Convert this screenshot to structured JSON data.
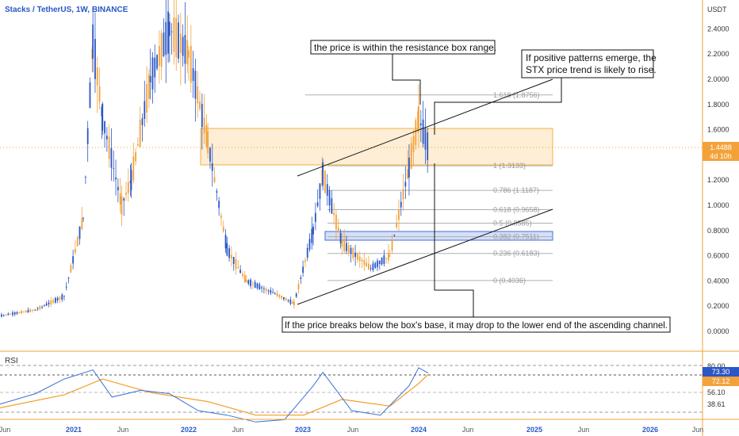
{
  "header": {
    "symbol_title": "Stacks / TetherUS, 1W, BINANCE"
  },
  "price_axis": {
    "unit": "USDT",
    "ticks": [
      "2.4000",
      "2.2000",
      "2.0000",
      "1.8000",
      "1.6000",
      "1.4000",
      "1.2000",
      "1.0000",
      "0.8000",
      "0.6000",
      "0.4000",
      "0.2000",
      "0.0000"
    ],
    "last_price": "1.4488",
    "countdown": "4d 10h"
  },
  "time_axis": {
    "ticks": [
      "Jun",
      "2021",
      "Jun",
      "2022",
      "Jun",
      "2023",
      "Jun",
      "2024",
      "Jun",
      "2025",
      "Jun",
      "2026",
      "Jun"
    ]
  },
  "rsi": {
    "label": "RSI",
    "ticks": [
      "80.00",
      "56.10",
      "38.61"
    ],
    "rsi_value": "73.30",
    "ma_value": "72.12"
  },
  "fib_levels": [
    {
      "label": "1.618 (1.8756)"
    },
    {
      "label": "1 (1.3133)"
    },
    {
      "label": "0.786 (1.1187)"
    },
    {
      "label": "0.618 (0.9658)"
    },
    {
      "label": "0.5 (0.8585)"
    },
    {
      "label": "0.382 (0.7511)"
    },
    {
      "label": "0.236 (0.6183)"
    },
    {
      "label": "0 (0.4036)"
    }
  ],
  "annotations": {
    "resistance_note": "the price is within the resistance box range.",
    "positive_note_line1": "If positive patterns emerge, the",
    "positive_note_line2": "STX price trend is likely to rise.",
    "breakdown_note": "If the price breaks below the box's base, it may drop to the lower end of the ascending channel."
  },
  "colors": {
    "up": "#2a56c6",
    "down": "#f3a23a",
    "resistance_box": "#f5b042",
    "support_box": "#3f6fd8",
    "rsi_line": "#3a6fd8",
    "rsi_ma": "#f39c26",
    "fib_line": "#b0b0b0"
  },
  "chart_data": [
    {
      "type": "line",
      "title": "Stacks / TetherUS, 1W, BINANCE",
      "ylabel": "USDT",
      "ylim": [
        -0.15,
        2.55
      ],
      "grid": false,
      "series": [
        {
          "values_approx_close": [
            {
              "x": "2020-05",
              "y": 0.12
            },
            {
              "x": "2020-09",
              "y": 0.17
            },
            {
              "x": "2020-12",
              "y": 0.28
            },
            {
              "x": "2021-02",
              "y": 0.9
            },
            {
              "x": "2021-03",
              "y": 2.3
            },
            {
              "x": "2021-04",
              "y": 1.7
            },
            {
              "x": "2021-06",
              "y": 1.0
            },
            {
              "x": "2021-07",
              "y": 1.2
            },
            {
              "x": "2021-09",
              "y": 2.0
            },
            {
              "x": "2021-11",
              "y": 2.4
            },
            {
              "x": "2022-01",
              "y": 2.2
            },
            {
              "x": "2022-03",
              "y": 1.5
            },
            {
              "x": "2022-05",
              "y": 0.65
            },
            {
              "x": "2022-07",
              "y": 0.4
            },
            {
              "x": "2022-10",
              "y": 0.3
            },
            {
              "x": "2022-12",
              "y": 0.22
            },
            {
              "x": "2023-02",
              "y": 0.8
            },
            {
              "x": "2023-03",
              "y": 1.25
            },
            {
              "x": "2023-05",
              "y": 0.7
            },
            {
              "x": "2023-08",
              "y": 0.5
            },
            {
              "x": "2023-10",
              "y": 0.6
            },
            {
              "x": "2023-12",
              "y": 1.3
            },
            {
              "x": "2024-01",
              "y": 1.7
            },
            {
              "x": "2024-02",
              "y": 1.45
            }
          ]
        }
      ],
      "resistance_box": [
        1.3133,
        1.6
      ],
      "support_box": [
        0.73,
        0.78
      ],
      "fib_values": [
        1.8756,
        1.3133,
        1.1187,
        0.9658,
        0.8585,
        0.7511,
        0.6183,
        0.4036
      ]
    },
    {
      "type": "line",
      "title": "RSI",
      "ylim": [
        20,
        85
      ],
      "levels": [
        80.0,
        56.1,
        38.61
      ],
      "series": [
        {
          "values": [
            {
              "x": "2020-05",
              "y": 45
            },
            {
              "x": "2020-09",
              "y": 55
            },
            {
              "x": "2020-12",
              "y": 68
            },
            {
              "x": "2021-03",
              "y": 76
            },
            {
              "x": "2021-05",
              "y": 52
            },
            {
              "x": "2021-08",
              "y": 58
            },
            {
              "x": "2021-11",
              "y": 55
            },
            {
              "x": "2022-02",
              "y": 40
            },
            {
              "x": "2022-05",
              "y": 36
            },
            {
              "x": "2022-08",
              "y": 30
            },
            {
              "x": "2022-11",
              "y": 32
            },
            {
              "x": "2023-02",
              "y": 62
            },
            {
              "x": "2023-03",
              "y": 74
            },
            {
              "x": "2023-06",
              "y": 40
            },
            {
              "x": "2023-09",
              "y": 36
            },
            {
              "x": "2023-12",
              "y": 62
            },
            {
              "x": "2024-01",
              "y": 78
            },
            {
              "x": "2024-02",
              "y": 73.3
            }
          ]
        },
        {
          "values": [
            {
              "x": "2020-05",
              "y": 42
            },
            {
              "x": "2020-12",
              "y": 54
            },
            {
              "x": "2021-04",
              "y": 68
            },
            {
              "x": "2021-09",
              "y": 56
            },
            {
              "x": "2022-03",
              "y": 48
            },
            {
              "x": "2022-08",
              "y": 36
            },
            {
              "x": "2023-01",
              "y": 36
            },
            {
              "x": "2023-05",
              "y": 50
            },
            {
              "x": "2023-10",
              "y": 44
            },
            {
              "x": "2024-01",
              "y": 64
            },
            {
              "x": "2024-02",
              "y": 72.12
            }
          ]
        }
      ]
    }
  ]
}
